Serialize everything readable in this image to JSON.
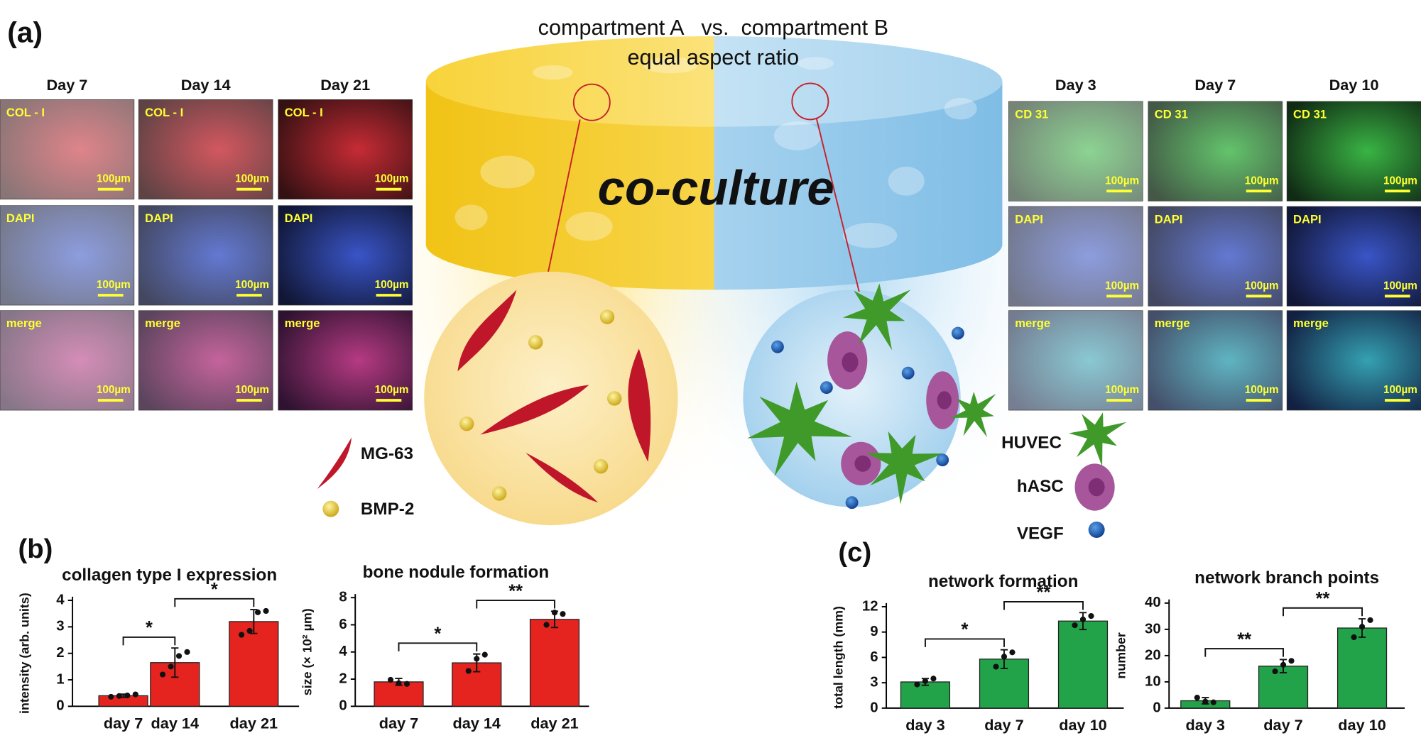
{
  "figure": {
    "panel_a": "(a)",
    "panel_b": "(b)",
    "panel_c": "(c)",
    "title": [
      "compartment A   vs.  compartment B",
      "equal aspect ratio"
    ],
    "center_label": "co-culture",
    "left_grid": {
      "columns": [
        "Day 7",
        "Day 14",
        "Day 21"
      ],
      "rows": [
        "COL - I",
        "DAPI",
        "merge"
      ]
    },
    "right_grid": {
      "columns": [
        "Day 3",
        "Day 7",
        "Day 10"
      ],
      "rows": [
        "CD 31",
        "DAPI",
        "merge"
      ]
    },
    "scale_bar": "100µm",
    "legend": {
      "mg63": "MG-63",
      "bmp2": "BMP-2",
      "huvec": "HUVEC",
      "hasc": "hASC",
      "vegf": "VEGF"
    }
  },
  "chart_data": [
    {
      "type": "bar",
      "title": "collagen type I expression",
      "y_label": "intensity (arb. units)",
      "color": "#e52420",
      "categories": [
        "day 7",
        "day 14",
        "day 21"
      ],
      "values": [
        0.4,
        1.65,
        3.2
      ],
      "errors": [
        0.06,
        0.55,
        0.45
      ],
      "points": [
        [
          0.36,
          0.39,
          0.41,
          0.45
        ],
        [
          1.2,
          1.5,
          1.9,
          2.05
        ],
        [
          2.7,
          2.85,
          3.55,
          3.6
        ]
      ],
      "ylim": [
        0,
        4
      ],
      "yticks": [
        0,
        1,
        2,
        3,
        4
      ],
      "annotations": [
        {
          "text": "*",
          "between": [
            "day 7",
            "day 14"
          ]
        },
        {
          "text": "*",
          "between": [
            "day 14",
            "day 21"
          ]
        }
      ]
    },
    {
      "type": "bar",
      "title": "bone nodule formation",
      "y_label": "size (× 10² µm)",
      "color": "#e52420",
      "categories": [
        "day 7",
        "day 14",
        "day 21"
      ],
      "values": [
        1.8,
        3.2,
        6.4
      ],
      "errors": [
        0.25,
        0.65,
        0.6
      ],
      "points": [
        [
          1.95,
          1.7,
          1.65
        ],
        [
          2.6,
          3.5,
          3.8
        ],
        [
          6.0,
          6.9,
          6.8
        ]
      ],
      "ylim": [
        0,
        8
      ],
      "yticks": [
        0,
        2,
        4,
        6,
        8
      ],
      "annotations": [
        {
          "text": "*",
          "between": [
            "day 7",
            "day 14"
          ]
        },
        {
          "text": "**",
          "between": [
            "day 14",
            "day 21"
          ]
        }
      ]
    },
    {
      "type": "bar",
      "title": "network formation",
      "y_label": "total length (mm)",
      "color": "#22a34a",
      "categories": [
        "day 3",
        "day 7",
        "day 10"
      ],
      "values": [
        3.1,
        5.8,
        10.3
      ],
      "errors": [
        0.4,
        1.1,
        1.0
      ],
      "points": [
        [
          2.8,
          3.2,
          3.5
        ],
        [
          4.9,
          6.1,
          6.6
        ],
        [
          9.8,
          10.5,
          10.9
        ]
      ],
      "ylim": [
        0,
        12
      ],
      "yticks": [
        0,
        3,
        6,
        9,
        12
      ],
      "annotations": [
        {
          "text": "*",
          "between": [
            "day 3",
            "day 7"
          ]
        },
        {
          "text": "**",
          "between": [
            "day 7",
            "day 10"
          ]
        }
      ]
    },
    {
      "type": "bar",
      "title": "network branch points",
      "y_label": "number",
      "color": "#22a34a",
      "categories": [
        "day 3",
        "day 7",
        "day 10"
      ],
      "values": [
        2.8,
        16,
        30.5
      ],
      "errors": [
        1.2,
        2.5,
        3.5
      ],
      "points": [
        [
          4,
          2.5,
          2.2
        ],
        [
          14,
          16.5,
          18
        ],
        [
          27,
          31,
          33.5
        ]
      ],
      "ylim": [
        0,
        40
      ],
      "yticks": [
        0,
        10,
        20,
        30,
        40
      ],
      "annotations": [
        {
          "text": "**",
          "between": [
            "day 3",
            "day 7"
          ]
        },
        {
          "text": "**",
          "between": [
            "day 7",
            "day 10"
          ]
        }
      ]
    }
  ]
}
